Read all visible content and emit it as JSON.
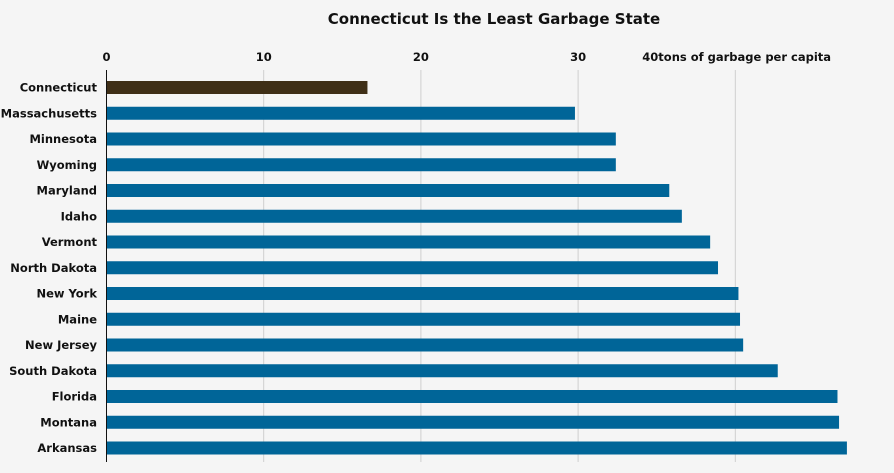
{
  "chart_data": {
    "type": "bar",
    "orientation": "horizontal",
    "title": "Connecticut Is the Least Garbage State",
    "xlabel": "",
    "ylabel": "",
    "unit_label": "tons of garbage per capita",
    "xlim": [
      0,
      47
    ],
    "x_ticks": [
      0,
      10,
      20,
      30,
      40
    ],
    "x_tick_labels": [
      "0",
      "10",
      "20",
      "30",
      "40"
    ],
    "x_axis_position": "top",
    "grid": true,
    "categories": [
      "Connecticut",
      "Massachusetts",
      "Minnesota",
      "Wyoming",
      "Maryland",
      "Idaho",
      "Vermont",
      "North Dakota",
      "New York",
      "Maine",
      "New Jersey",
      "South Dakota",
      "Florida",
      "Montana",
      "Arkansas"
    ],
    "values": [
      16.6,
      29.8,
      32.4,
      32.4,
      35.8,
      36.6,
      38.4,
      38.9,
      40.2,
      40.3,
      40.5,
      42.7,
      46.5,
      46.6,
      47.1
    ],
    "highlight_category": "Connecticut",
    "colors": {
      "highlight": "#3f2f17",
      "default": "#006598",
      "grid": "#cfcfcf",
      "axis": "#111111",
      "background": "#f5f5f5"
    }
  }
}
